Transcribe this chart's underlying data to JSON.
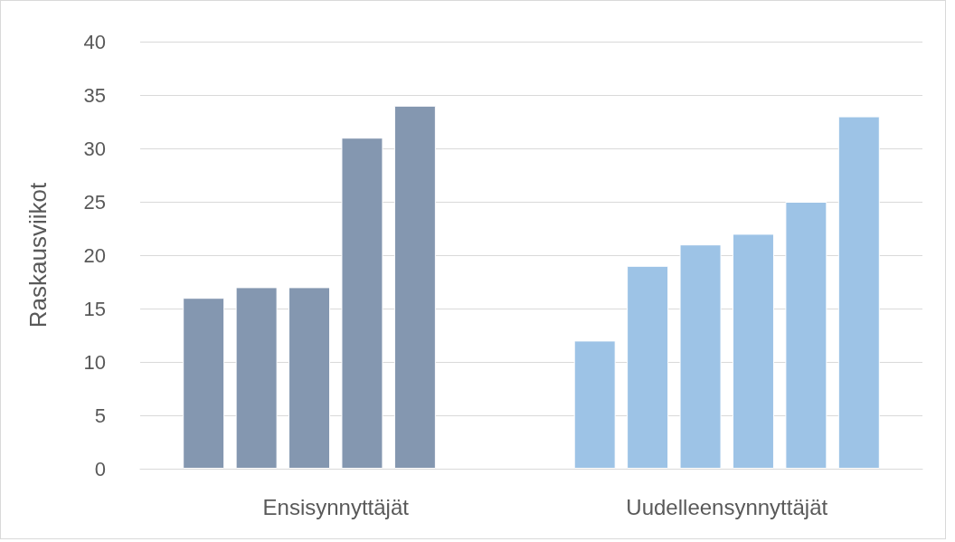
{
  "chart_data": {
    "type": "bar",
    "ylabel": "Raskausviikot",
    "categories": [
      "Ensisynnyttäjät",
      "Uudelleensynnyttäjät"
    ],
    "series": [
      {
        "colors": [
          "#8497b0",
          "#9dc3e6"
        ],
        "values": [
          16,
          12
        ]
      },
      {
        "colors": [
          "#8497b0",
          "#9dc3e6"
        ],
        "values": [
          17,
          19
        ]
      },
      {
        "colors": [
          "#8497b0",
          "#9dc3e6"
        ],
        "values": [
          17,
          21
        ]
      },
      {
        "colors": [
          "#8497b0",
          "#9dc3e6"
        ],
        "values": [
          31,
          22
        ]
      },
      {
        "colors": [
          "#8497b0",
          "#9dc3e6"
        ],
        "values": [
          34,
          25
        ]
      },
      {
        "colors": [
          "#8497b0",
          "#9dc3e6"
        ],
        "values": [
          null,
          33
        ]
      }
    ],
    "ylim": [
      0,
      40
    ],
    "yticks": [
      0,
      5,
      10,
      15,
      20,
      25,
      30,
      35,
      40
    ],
    "grid": "y"
  }
}
